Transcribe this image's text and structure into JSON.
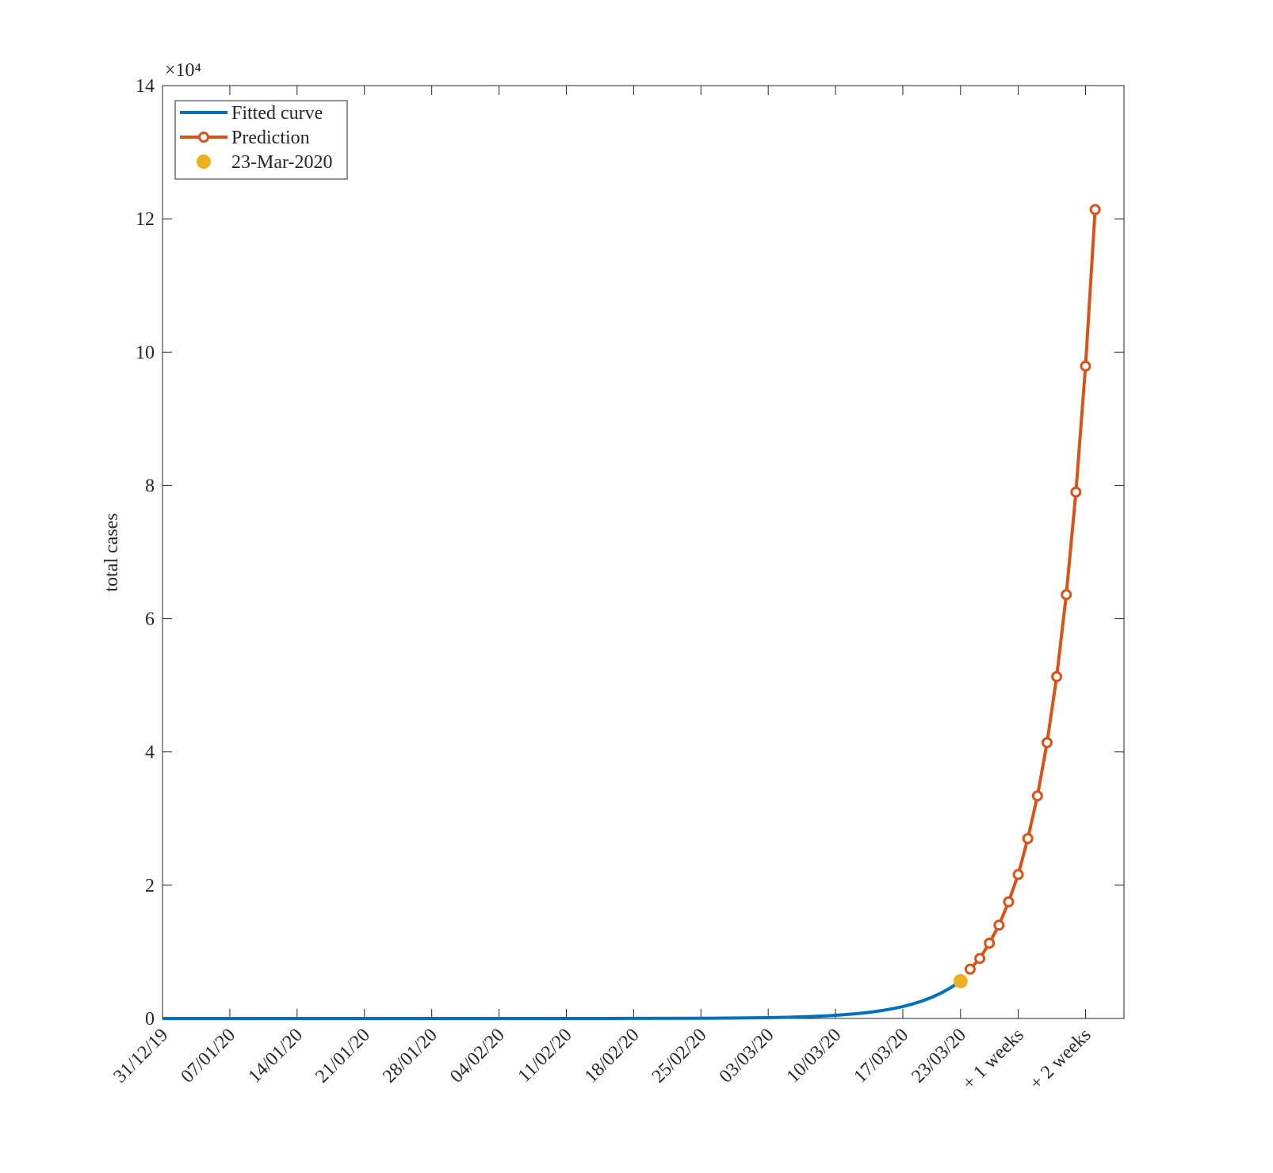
{
  "chart_data": {
    "type": "line",
    "y_label": "total cases",
    "y_exponent": "×10⁴",
    "xlim": [
      0,
      100
    ],
    "ylim": [
      0,
      140000
    ],
    "xticks": [
      {
        "value": 0,
        "label": "31/12/19"
      },
      {
        "value": 7,
        "label": "07/01/20"
      },
      {
        "value": 14,
        "label": "14/01/20"
      },
      {
        "value": 21,
        "label": "21/01/20"
      },
      {
        "value": 28,
        "label": "28/01/20"
      },
      {
        "value": 35,
        "label": "04/02/20"
      },
      {
        "value": 42,
        "label": "11/02/20"
      },
      {
        "value": 49,
        "label": "18/02/20"
      },
      {
        "value": 56,
        "label": "25/02/20"
      },
      {
        "value": 63,
        "label": "03/03/20"
      },
      {
        "value": 70,
        "label": "10/03/20"
      },
      {
        "value": 77,
        "label": "17/03/20"
      },
      {
        "value": 83,
        "label": "23/03/20"
      },
      {
        "value": 89,
        "label": "+ 1 weeks"
      },
      {
        "value": 96,
        "label": "+ 2 weeks"
      }
    ],
    "yticks": [
      {
        "value": 0,
        "label": "0"
      },
      {
        "value": 20000,
        "label": "2"
      },
      {
        "value": 40000,
        "label": "4"
      },
      {
        "value": 60000,
        "label": "6"
      },
      {
        "value": 80000,
        "label": "8"
      },
      {
        "value": 100000,
        "label": "10"
      },
      {
        "value": 120000,
        "label": "12"
      },
      {
        "value": 140000,
        "label": "14"
      }
    ],
    "legend": "upper left",
    "series": [
      {
        "name": "Fitted curve",
        "color": "#0072bd",
        "style": "line",
        "x": [
          0,
          7,
          14,
          21,
          28,
          35,
          42,
          49,
          56,
          60,
          61,
          62,
          63,
          64,
          65,
          66,
          67,
          68,
          69,
          70,
          71,
          72,
          73,
          74,
          75,
          76,
          77,
          78,
          79,
          80,
          81,
          82,
          83
        ],
        "values": [
          0,
          0,
          0,
          0,
          0,
          1,
          2,
          9,
          33,
          71,
          86,
          104,
          125,
          152,
          183,
          222,
          268,
          324,
          392,
          474,
          573,
          693,
          838,
          1013,
          1225,
          1481,
          1791,
          2166,
          2619,
          3167,
          3830,
          4631,
          5600
        ]
      },
      {
        "name": "Prediction",
        "color": "#d95319",
        "style": "line-marker",
        "x": [
          84,
          85,
          86,
          87,
          88,
          89,
          90,
          91,
          92,
          93,
          94,
          95,
          96,
          97
        ],
        "values": [
          7400,
          9000,
          11300,
          14000,
          17500,
          21600,
          27000,
          33400,
          41400,
          51300,
          63600,
          79000,
          97900,
          121400
        ]
      },
      {
        "name": "23-Mar-2020",
        "color": "#edb120",
        "style": "dot",
        "x": [
          83
        ],
        "values": [
          5600
        ]
      }
    ]
  }
}
